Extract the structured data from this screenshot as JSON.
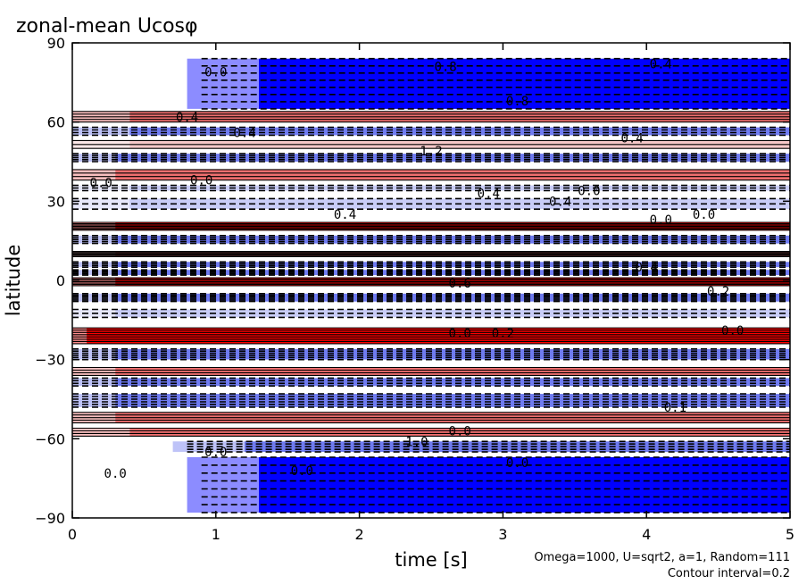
{
  "chart_data": {
    "type": "heatmap",
    "title": "zonal-mean Ucosφ",
    "xlabel": "time [s]",
    "ylabel": "latitude",
    "xlim": [
      0,
      5
    ],
    "ylim": [
      -90,
      90
    ],
    "x_ticks": [
      0,
      1,
      2,
      3,
      4,
      5
    ],
    "x_tick_labels": [
      "0",
      "1",
      "2",
      "3",
      "4",
      "5"
    ],
    "y_ticks": [
      90,
      60,
      30,
      0,
      -30,
      -60,
      -90
    ],
    "y_tick_labels": [
      "90",
      "60",
      "30",
      "0",
      "−30",
      "−60",
      "−90"
    ],
    "annotation_params": "Omega=1000, U=sqrt2, a=1, Random=111",
    "annotation_interval": "Contour interval=0.2",
    "colors": {
      "negative_strong": "#0000ff",
      "negative_mid": "#6f7bf0",
      "negative_weak": "#c9cdf7",
      "positive_weak": "#f7c9c9",
      "positive_mid": "#ef6f6f",
      "positive_strong": "#ff0000",
      "contour": "#000000"
    },
    "bands": [
      {
        "lat_range": [
          65,
          84
        ],
        "value": -1.4,
        "t_start": 1.3
      },
      {
        "lat_range": [
          60,
          64
        ],
        "value": 0.8,
        "t_start": 0.4
      },
      {
        "lat_range": [
          55,
          58
        ],
        "value": -0.6,
        "t_start": 0.4
      },
      {
        "lat_range": [
          50,
          53
        ],
        "value": 0.4,
        "t_start": 0.4
      },
      {
        "lat_range": [
          45,
          48
        ],
        "value": -0.8,
        "t_start": 0.3
      },
      {
        "lat_range": [
          38,
          42
        ],
        "value": 0.6,
        "t_start": 0.3
      },
      {
        "lat_range": [
          34,
          36
        ],
        "value": -0.4,
        "t_start": 0.4
      },
      {
        "lat_range": [
          27,
          31
        ],
        "value": -0.2,
        "t_start": 0.4
      },
      {
        "lat_range": [
          19,
          22
        ],
        "value": 1.2,
        "t_start": 0.3
      },
      {
        "lat_range": [
          14,
          17
        ],
        "value": -0.8,
        "t_start": 0.3
      },
      {
        "lat_range": [
          9,
          11
        ],
        "value": 1.0,
        "t_start": 0.3
      },
      {
        "lat_range": [
          5,
          7
        ],
        "value": -0.6,
        "t_start": 0.3
      },
      {
        "lat_range": [
          2,
          4
        ],
        "value": -0.8,
        "t_start": 0.3
      },
      {
        "lat_range": [
          -2,
          1
        ],
        "value": 1.2,
        "t_start": 0.3
      },
      {
        "lat_range": [
          -8,
          -5
        ],
        "value": -1.0,
        "t_start": 0.3
      },
      {
        "lat_range": [
          -14,
          -11
        ],
        "value": -0.4,
        "t_start": 0.3
      },
      {
        "lat_range": [
          -24,
          -18
        ],
        "value": 1.4,
        "t_start": 0.1
      },
      {
        "lat_range": [
          -30,
          -26
        ],
        "value": -1.0,
        "t_start": 0.3
      },
      {
        "lat_range": [
          -36,
          -33
        ],
        "value": 0.6,
        "t_start": 0.3
      },
      {
        "lat_range": [
          -40,
          -37
        ],
        "value": -0.6,
        "t_start": 0.3
      },
      {
        "lat_range": [
          -48,
          -43
        ],
        "value": -1.0,
        "t_start": 0.3
      },
      {
        "lat_range": [
          -54,
          -50
        ],
        "value": 0.8,
        "t_start": 0.3
      },
      {
        "lat_range": [
          -59,
          -56
        ],
        "value": 0.6,
        "t_start": 0.4
      },
      {
        "lat_range": [
          -65,
          -61
        ],
        "value": -0.8,
        "t_start": 1.2
      },
      {
        "lat_range": [
          -88,
          -67
        ],
        "value": -1.4,
        "t_start": 1.3
      }
    ],
    "contour_labels": [
      {
        "t": 1.0,
        "lat": 79,
        "text": "0.0"
      },
      {
        "t": 2.6,
        "lat": 81,
        "text": "0.8"
      },
      {
        "t": 4.1,
        "lat": 82,
        "text": "0.4"
      },
      {
        "t": 3.1,
        "lat": 68,
        "text": "0.8"
      },
      {
        "t": 0.8,
        "lat": 62,
        "text": "0.4"
      },
      {
        "t": 1.2,
        "lat": 56,
        "text": "0.4"
      },
      {
        "t": 2.5,
        "lat": 49,
        "text": "1.2"
      },
      {
        "t": 3.9,
        "lat": 54,
        "text": "0.4"
      },
      {
        "t": 0.2,
        "lat": 37,
        "text": "0.0"
      },
      {
        "t": 0.9,
        "lat": 38,
        "text": "0.0"
      },
      {
        "t": 2.9,
        "lat": 33,
        "text": "0.4"
      },
      {
        "t": 3.4,
        "lat": 30,
        "text": "0.4"
      },
      {
        "t": 3.6,
        "lat": 34,
        "text": "0.0"
      },
      {
        "t": 4.1,
        "lat": 23,
        "text": "0.0"
      },
      {
        "t": 4.4,
        "lat": 25,
        "text": "0.0"
      },
      {
        "t": 1.9,
        "lat": 25,
        "text": "0.4"
      },
      {
        "t": 4.0,
        "lat": 5,
        "text": "0.4"
      },
      {
        "t": 2.7,
        "lat": -1,
        "text": "0.6"
      },
      {
        "t": 4.5,
        "lat": -4,
        "text": "0.2"
      },
      {
        "t": 2.7,
        "lat": -20,
        "text": "0.0"
      },
      {
        "t": 3.0,
        "lat": -20,
        "text": "0.2"
      },
      {
        "t": 4.6,
        "lat": -19,
        "text": "0.0"
      },
      {
        "t": 4.2,
        "lat": -48,
        "text": "0.1"
      },
      {
        "t": 2.4,
        "lat": -61,
        "text": "1.0"
      },
      {
        "t": 2.7,
        "lat": -57,
        "text": "0.0"
      },
      {
        "t": 0.3,
        "lat": -73,
        "text": "0.0"
      },
      {
        "t": 1.0,
        "lat": -65,
        "text": "0.0"
      },
      {
        "t": 1.6,
        "lat": -72,
        "text": "0.0"
      },
      {
        "t": 3.1,
        "lat": -69,
        "text": "0.0"
      }
    ],
    "grid": false,
    "legend": "none"
  }
}
